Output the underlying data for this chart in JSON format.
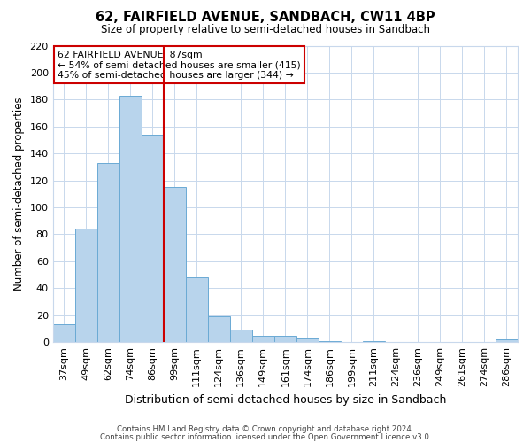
{
  "title": "62, FAIRFIELD AVENUE, SANDBACH, CW11 4BP",
  "subtitle": "Size of property relative to semi-detached houses in Sandbach",
  "xlabel": "Distribution of semi-detached houses by size in Sandbach",
  "ylabel": "Number of semi-detached properties",
  "categories": [
    "37sqm",
    "49sqm",
    "62sqm",
    "74sqm",
    "86sqm",
    "99sqm",
    "111sqm",
    "124sqm",
    "136sqm",
    "149sqm",
    "161sqm",
    "174sqm",
    "186sqm",
    "199sqm",
    "211sqm",
    "224sqm",
    "236sqm",
    "249sqm",
    "261sqm",
    "274sqm",
    "286sqm"
  ],
  "values": [
    13,
    84,
    133,
    183,
    154,
    115,
    48,
    19,
    9,
    5,
    5,
    3,
    1,
    0,
    1,
    0,
    0,
    0,
    0,
    0,
    2
  ],
  "bar_color": "#b8d4ec",
  "bar_edge_color": "#6aaad4",
  "ylim": [
    0,
    220
  ],
  "yticks": [
    0,
    20,
    40,
    60,
    80,
    100,
    120,
    140,
    160,
    180,
    200,
    220
  ],
  "property_line_color": "#cc0000",
  "annotation_title": "62 FAIRFIELD AVENUE: 87sqm",
  "annotation_line1": "← 54% of semi-detached houses are smaller (415)",
  "annotation_line2": "45% of semi-detached houses are larger (344) →",
  "annotation_box_color": "#ffffff",
  "annotation_box_edge_color": "#cc0000",
  "footnote1": "Contains HM Land Registry data © Crown copyright and database right 2024.",
  "footnote2": "Contains public sector information licensed under the Open Government Licence v3.0.",
  "bg_color": "#ffffff",
  "grid_color": "#c8d8ec"
}
